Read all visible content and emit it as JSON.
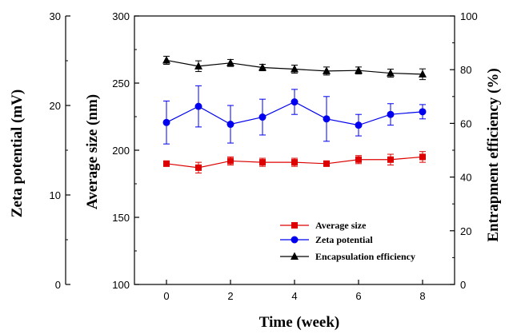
{
  "chart_data": {
    "type": "line",
    "xlabel": "Time (week)",
    "x_ticks": [
      0,
      2,
      4,
      6,
      8
    ],
    "xlim": [
      -1,
      9
    ],
    "axes": {
      "left_outer": {
        "label": "Zeta potential (mV)",
        "range": [
          0,
          30
        ],
        "ticks": [
          0,
          10,
          20,
          30
        ]
      },
      "left_inner": {
        "label": "Average size (nm)",
        "range": [
          100,
          300
        ],
        "ticks": [
          100,
          150,
          200,
          250,
          300
        ]
      },
      "right": {
        "label": "Entrapment efficiency (%)",
        "range": [
          0,
          100
        ],
        "ticks": [
          0,
          20,
          40,
          60,
          80,
          100
        ]
      }
    },
    "x": [
      0,
      1,
      2,
      3,
      4,
      5,
      6,
      7,
      8
    ],
    "series": [
      {
        "name": "Average size",
        "axis": "left_inner",
        "color": "#dd0000",
        "marker": "square",
        "values": [
          190,
          187,
          192,
          191,
          191,
          190,
          193,
          193,
          195
        ],
        "errors": [
          2,
          4,
          3,
          3,
          3,
          2,
          3,
          4,
          4
        ]
      },
      {
        "name": "Zeta potential",
        "axis": "left_outer",
        "color": "#0000ee",
        "marker": "circle",
        "values": [
          18.1,
          19.9,
          17.9,
          18.7,
          20.4,
          18.5,
          17.8,
          19.0,
          19.3
        ],
        "errors": [
          2.4,
          2.3,
          2.1,
          2.0,
          1.4,
          2.5,
          1.2,
          1.2,
          0.8
        ]
      },
      {
        "name": "Encapsulation efficiency",
        "axis": "right",
        "color": "#000000",
        "marker": "triangle",
        "values": [
          83.5,
          81.3,
          82.5,
          80.8,
          80.2,
          79.5,
          79.7,
          78.7,
          78.3
        ],
        "errors": [
          1.5,
          2.0,
          1.3,
          1.2,
          1.5,
          1.5,
          1.3,
          1.5,
          2.0
        ]
      }
    ],
    "legend_position": "bottom-right"
  }
}
